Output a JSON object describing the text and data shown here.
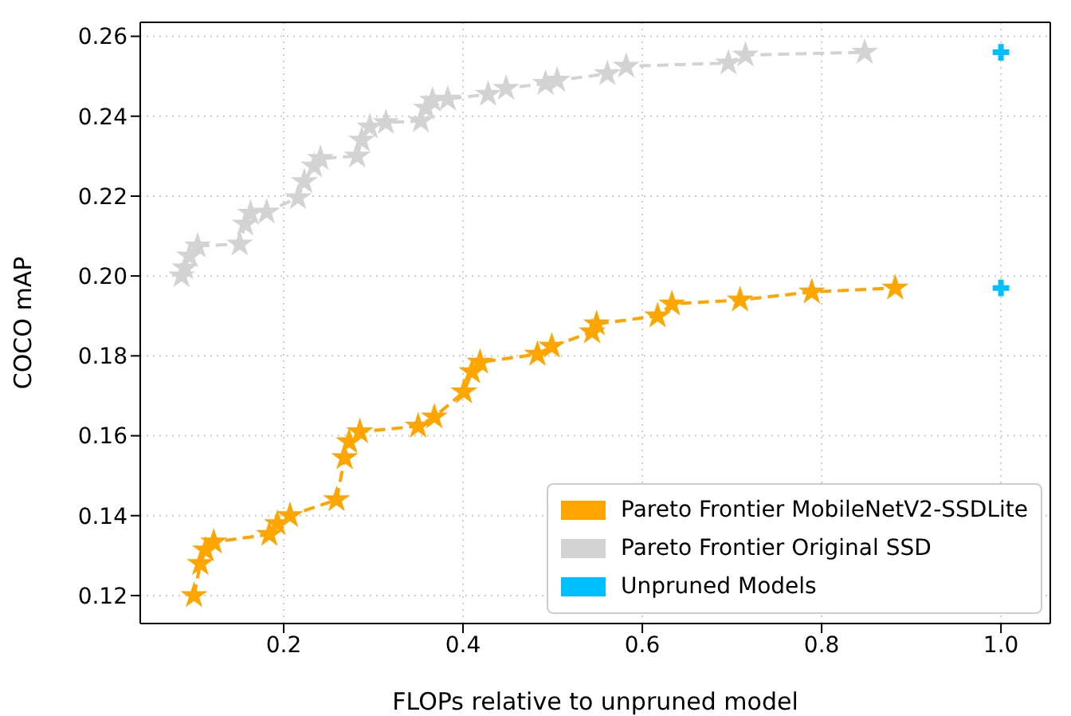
{
  "chart_data": {
    "type": "line",
    "xlabel": "FLOPs relative to unpruned model",
    "ylabel": "COCO mAP",
    "xlim": [
      0.04,
      1.055
    ],
    "ylim": [
      0.113,
      0.2635
    ],
    "xticks": [
      0.2,
      0.4,
      0.6,
      0.8,
      {
        "value": 1,
        "label": "1.0"
      }
    ],
    "yticks": [
      0.12,
      0.14,
      0.16,
      0.18,
      {
        "value": 0.2,
        "label": "0.20"
      },
      0.22,
      0.24,
      0.26
    ],
    "grid": true,
    "legend": "bottom right",
    "line_style": "dashed",
    "marker": "star",
    "series": [
      {
        "name": "Pareto Frontier MobileNetV2-SSDLite",
        "color": "#ffa500",
        "x": [
          0.1,
          0.107,
          0.113,
          0.122,
          0.184,
          0.193,
          0.207,
          0.259,
          0.268,
          0.273,
          0.285,
          0.35,
          0.368,
          0.401,
          0.41,
          0.419,
          0.483,
          0.499,
          0.544,
          0.549,
          0.617,
          0.633,
          0.709,
          0.789,
          0.882
        ],
        "values": [
          0.12,
          0.128,
          0.1314,
          0.1334,
          0.1353,
          0.138,
          0.14,
          0.144,
          0.1545,
          0.1585,
          0.161,
          0.1624,
          0.1647,
          0.171,
          0.176,
          0.1784,
          0.1804,
          0.1824,
          0.186,
          0.188,
          0.19,
          0.193,
          0.194,
          0.196,
          0.197
        ]
      },
      {
        "name": "Pareto Frontier Original SSD",
        "color": "#d3d3d3",
        "x": [
          0.086,
          0.09,
          0.095,
          0.104,
          0.151,
          0.157,
          0.163,
          0.181,
          0.216,
          0.223,
          0.234,
          0.241,
          0.282,
          0.287,
          0.296,
          0.314,
          0.353,
          0.359,
          0.366,
          0.383,
          0.428,
          0.448,
          0.492,
          0.505,
          0.561,
          0.582,
          0.696,
          0.715,
          0.848
        ],
        "values": [
          0.2,
          0.202,
          0.205,
          0.2075,
          0.208,
          0.213,
          0.2157,
          0.216,
          0.2196,
          0.2236,
          0.2275,
          0.2294,
          0.23,
          0.234,
          0.2373,
          0.2384,
          0.2388,
          0.242,
          0.244,
          0.2443,
          0.2455,
          0.247,
          0.2482,
          0.249,
          0.2506,
          0.2525,
          0.2533,
          0.2553,
          0.256
        ]
      },
      {
        "name": "Unpruned Models",
        "type": "scatter",
        "marker": "cross",
        "color": "#00bfff",
        "x": [
          1,
          1
        ],
        "values": [
          0.256,
          0.197
        ]
      }
    ]
  }
}
